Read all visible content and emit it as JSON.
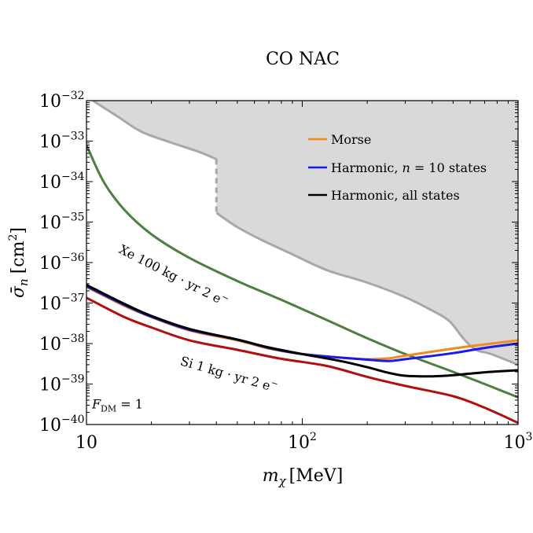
{
  "chart_data": {
    "type": "line",
    "title": "CO NAC",
    "xlabel": "m_χ [MeV]",
    "xlabel_main": "m",
    "xlabel_sub": "χ",
    "xlabel_unit": "[MeV]",
    "ylabel": "σ̄_n [cm²]",
    "ylabel_main": "σ̄",
    "ylabel_sub": "n",
    "ylabel_unit": "[cm",
    "ylabel_unit_sup": "2",
    "ylabel_unit_close": "]",
    "x_scale": "log",
    "y_scale": "log",
    "xlim": [
      10,
      1000
    ],
    "ylim": [
      1e-40,
      1e-32
    ],
    "x_ticks": [
      {
        "value": 10,
        "base": "10",
        "exp": ""
      },
      {
        "value": 100,
        "base": "10",
        "exp": "2"
      },
      {
        "value": 1000,
        "base": "10",
        "exp": "3"
      }
    ],
    "y_ticks": [
      {
        "value": 1e-32,
        "base": "10",
        "exp": "−32"
      },
      {
        "value": 1e-33,
        "base": "10",
        "exp": "−33"
      },
      {
        "value": 1e-34,
        "base": "10",
        "exp": "−34"
      },
      {
        "value": 1e-35,
        "base": "10",
        "exp": "−35"
      },
      {
        "value": 1e-36,
        "base": "10",
        "exp": "−36"
      },
      {
        "value": 1e-37,
        "base": "10",
        "exp": "−37"
      },
      {
        "value": 1e-38,
        "base": "10",
        "exp": "−38"
      },
      {
        "value": 1e-39,
        "base": "10",
        "exp": "−39"
      },
      {
        "value": 1e-40,
        "base": "10",
        "exp": "−40"
      }
    ],
    "legend_position": "top-right",
    "legend": [
      {
        "name": "Morse",
        "color": "#f28a1c"
      },
      {
        "name": "Harmonic, n = 10 states",
        "color": "#1a1aeb",
        "label_pre": "Harmonic, ",
        "label_var": "n",
        "label_post": " = 10 states"
      },
      {
        "name": "Harmonic, all states",
        "color": "#000000"
      }
    ],
    "excluded_region": {
      "name": "excluded",
      "fill": "#d9d9d9",
      "line_color": "#a8a8a8",
      "points": [
        [
          10.7,
          1e-32
        ],
        [
          14,
          4e-33
        ],
        [
          18,
          1.7e-33
        ],
        [
          25,
          9e-34
        ],
        [
          33,
          5.5e-34
        ],
        [
          40,
          3.6e-34
        ]
      ],
      "points_after_gap": [
        [
          40,
          1.7e-35
        ],
        [
          50,
          7.5e-36
        ],
        [
          65,
          3.6e-36
        ],
        [
          90,
          1.6e-36
        ],
        [
          130,
          6.5e-37
        ],
        [
          200,
          3.2e-37
        ],
        [
          300,
          1.4e-37
        ],
        [
          400,
          6.5e-38
        ],
        [
          480,
          3.6e-38
        ],
        [
          560,
          1.3e-38
        ],
        [
          640,
          7e-39
        ],
        [
          750,
          5.5e-39
        ],
        [
          1000,
          3e-39
        ]
      ],
      "gap_x": 40
    },
    "series": [
      {
        "name": "Xe 100 kg·yr 2 e⁻",
        "color": "#4e7f3f",
        "x": [
          10,
          12,
          15,
          20,
          30,
          50,
          80,
          130,
          200,
          300,
          500,
          700,
          1000
        ],
        "y": [
          8e-34,
          1e-34,
          2e-35,
          5e-36,
          1.3e-36,
          3.5e-37,
          1.2e-37,
          3.8e-38,
          1.35e-38,
          5.5e-39,
          2e-39,
          1e-39,
          4.7e-40
        ]
      },
      {
        "name": "Si 1 kg·yr 2 e⁻",
        "color": "#b30d0d",
        "x": [
          10,
          15,
          20,
          30,
          50,
          80,
          130,
          200,
          300,
          500,
          700,
          1000
        ],
        "y": [
          1.35e-37,
          4.5e-38,
          2.5e-38,
          1.2e-38,
          7e-39,
          4.2e-39,
          2.8e-39,
          1.5e-39,
          9e-40,
          5e-40,
          2.6e-40,
          1.1e-40
        ]
      },
      {
        "name": "Morse",
        "color": "#f28a1c",
        "x": [
          10,
          15,
          20,
          30,
          50,
          70,
          100,
          150,
          200,
          250,
          300,
          500,
          700,
          1000
        ],
        "y": [
          2.5e-37,
          8.5e-38,
          4.5e-38,
          2.1e-38,
          1.2e-38,
          7.5e-39,
          5.5e-39,
          4.5e-39,
          4.1e-39,
          4.3e-39,
          5e-39,
          7.5e-39,
          9.5e-39,
          1.2e-38
        ]
      },
      {
        "name": "Harmonic, n = 10 states",
        "color": "#1a1aeb",
        "x": [
          10,
          15,
          20,
          30,
          50,
          70,
          100,
          150,
          200,
          250,
          300,
          500,
          700,
          1000
        ],
        "y": [
          2.6e-37,
          9e-38,
          4.6e-38,
          2.2e-38,
          1.25e-38,
          7.8e-39,
          5.5e-39,
          4.5e-39,
          4e-39,
          3.7e-39,
          4.1e-39,
          5.8e-39,
          7.8e-39,
          1e-38
        ]
      },
      {
        "name": "Harmonic, all states",
        "color": "#000000",
        "x": [
          10,
          15,
          20,
          30,
          50,
          70,
          100,
          150,
          200,
          250,
          300,
          400,
          500,
          700,
          1000
        ],
        "y": [
          2.8e-37,
          9.5e-38,
          4.8e-38,
          2.3e-38,
          1.25e-38,
          8e-39,
          5.5e-39,
          3.7e-39,
          2.6e-39,
          1.9e-39,
          1.6e-39,
          1.55e-39,
          1.65e-39,
          1.95e-39,
          2.2e-39
        ]
      }
    ],
    "annotations": [
      {
        "name": "xe-label",
        "text": "Xe 100 kg · yr 2 e",
        "sup": "−",
        "x": 14,
        "y": 1.8e-36,
        "angle": 27
      },
      {
        "name": "si-label",
        "text": "Si 1 kg · yr 2 e",
        "sup": "−",
        "x": 27,
        "y": 3e-39,
        "angle": 16
      },
      {
        "name": "fdm-label",
        "text_main": "F",
        "text_sub": "DM",
        "text_rest": " = 1",
        "x": 10.6,
        "y": 2.5e-40,
        "angle": 0
      }
    ]
  }
}
